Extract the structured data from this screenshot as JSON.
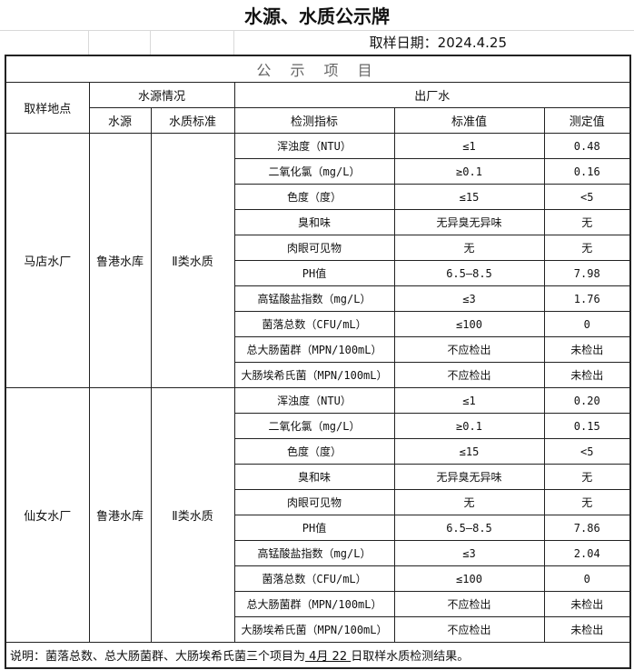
{
  "title": "水源、水质公示牌",
  "sample_date": "取样日期：2024.4.25",
  "section_title": "公 示 项 目",
  "headers": {
    "location": "取样地点",
    "source_info": "水源情况",
    "outlet_water": "出厂水",
    "source": "水源",
    "quality_standard": "水质标准",
    "indicator": "检测指标",
    "standard_value": "标准值",
    "measured_value": "测定值"
  },
  "plants": [
    {
      "name": "马店水厂",
      "source": "鲁港水库",
      "standard": "Ⅱ类水质",
      "rows": [
        {
          "indicator": "浑浊度（NTU）",
          "standard": "≤1",
          "measured": "0.48"
        },
        {
          "indicator": "二氧化氯（mg/L）",
          "standard": "≥0.1",
          "measured": "0.16"
        },
        {
          "indicator": "色度（度）",
          "standard": "≤15",
          "measured": "<5"
        },
        {
          "indicator": "臭和味",
          "standard": "无异臭无异味",
          "measured": "无"
        },
        {
          "indicator": "肉眼可见物",
          "standard": "无",
          "measured": "无"
        },
        {
          "indicator": "PH值",
          "standard": "6.5–8.5",
          "measured": "7.98"
        },
        {
          "indicator": "高锰酸盐指数（mg/L）",
          "standard": "≤3",
          "measured": "1.76"
        },
        {
          "indicator": "菌落总数（CFU/mL）",
          "standard": "≤100",
          "measured": "0"
        },
        {
          "indicator": "总大肠菌群（MPN/100mL）",
          "standard": "不应检出",
          "measured": "未检出"
        },
        {
          "indicator": "大肠埃希氏菌（MPN/100mL）",
          "standard": "不应检出",
          "measured": "未检出"
        }
      ]
    },
    {
      "name": "仙女水厂",
      "source": "鲁港水库",
      "standard": "Ⅱ类水质",
      "rows": [
        {
          "indicator": "浑浊度（NTU）",
          "standard": "≤1",
          "measured": "0.20"
        },
        {
          "indicator": "二氧化氯（mg/L）",
          "standard": "≥0.1",
          "measured": "0.15"
        },
        {
          "indicator": "色度（度）",
          "standard": "≤15",
          "measured": "<5"
        },
        {
          "indicator": "臭和味",
          "standard": "无异臭无异味",
          "measured": "无"
        },
        {
          "indicator": "肉眼可见物",
          "standard": "无",
          "measured": "无"
        },
        {
          "indicator": "PH值",
          "standard": "6.5–8.5",
          "measured": "7.86"
        },
        {
          "indicator": "高锰酸盐指数（mg/L）",
          "standard": "≤3",
          "measured": "2.04"
        },
        {
          "indicator": "菌落总数（CFU/mL）",
          "standard": "≤100",
          "measured": "0"
        },
        {
          "indicator": "总大肠菌群（MPN/100mL）",
          "standard": "不应检出",
          "measured": "未检出"
        },
        {
          "indicator": "大肠埃希氏菌（MPN/100mL）",
          "standard": "不应检出",
          "measured": "未检出"
        }
      ]
    }
  ],
  "note": {
    "prefix": "说明：菌落总数、总大肠菌群、大肠埃希氏菌三个项目为",
    "date": " 4月 22 ",
    "suffix": "日取样水质检测结果。"
  }
}
